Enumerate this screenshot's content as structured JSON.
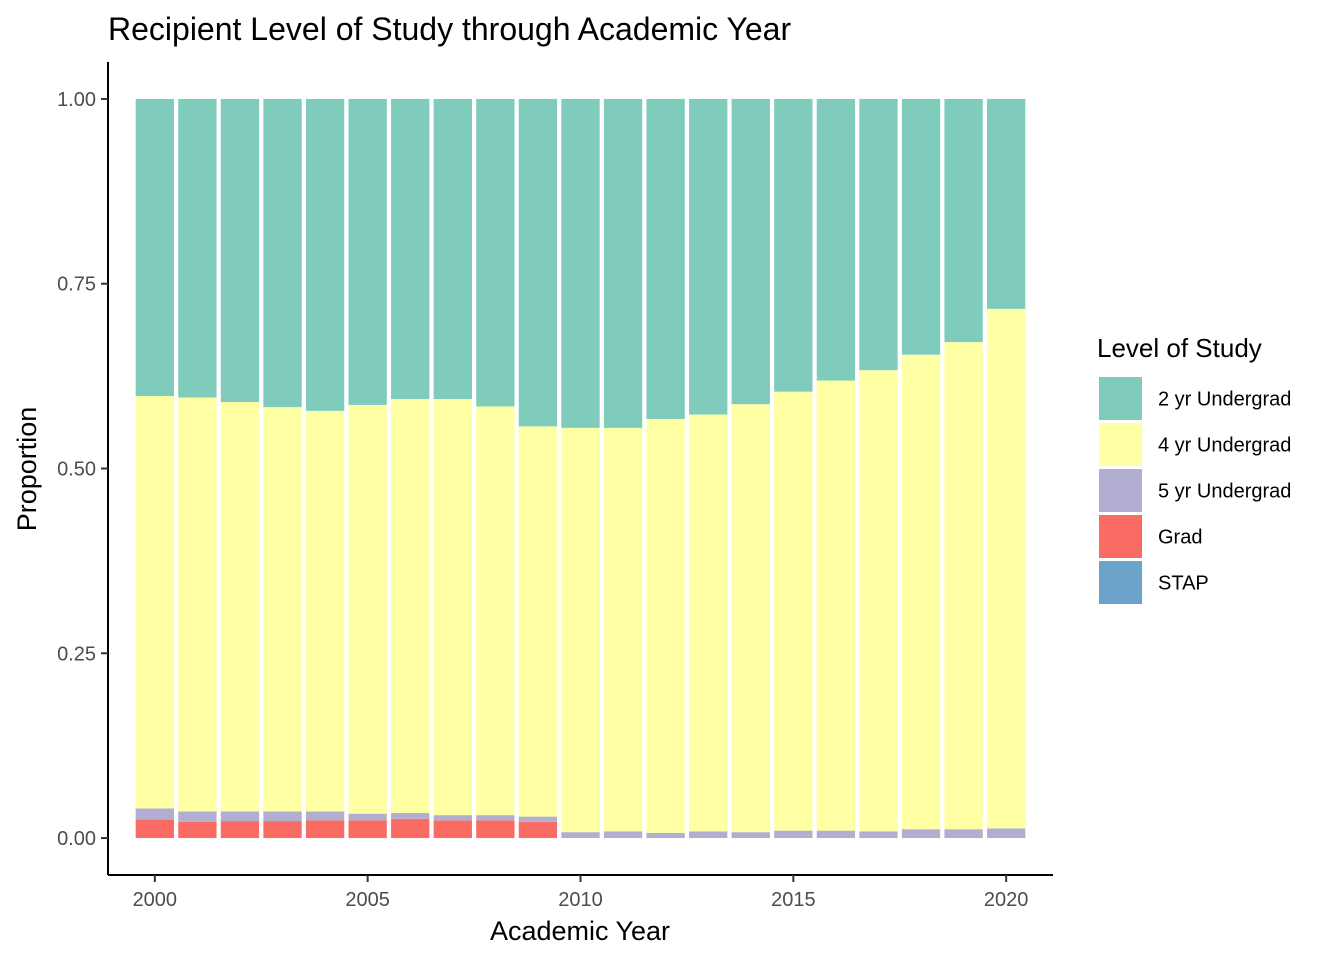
{
  "chart_data": {
    "type": "bar",
    "stacked": true,
    "title": "Recipient Level of Study through Academic Year",
    "xlabel": "Academic Year",
    "ylabel": "Proportion",
    "x": [
      2000,
      2001,
      2002,
      2003,
      2004,
      2005,
      2006,
      2007,
      2008,
      2009,
      2010,
      2011,
      2012,
      2013,
      2014,
      2015,
      2016,
      2017,
      2018,
      2019,
      2020
    ],
    "xlim": [
      1998.9,
      2021.1
    ],
    "ylim": [
      -0.05,
      1.05
    ],
    "x_ticks": [
      2000,
      2005,
      2010,
      2015,
      2020
    ],
    "y_ticks": [
      "0.00",
      "0.25",
      "0.50",
      "0.75",
      "1.00"
    ],
    "y_tick_values": [
      0,
      0.25,
      0.5,
      0.75,
      1.0
    ],
    "grid": false,
    "legend_position": "right",
    "legend_title": "Level of Study",
    "stack_order_bottom_to_top": [
      "STAP",
      "Grad",
      "5 yr Undergrad",
      "4 yr Undergrad",
      "2 yr Undergrad"
    ],
    "series": [
      {
        "name": "2 yr Undergrad",
        "color": "#7FCBBC",
        "values": [
          0.402,
          0.404,
          0.41,
          0.417,
          0.422,
          0.414,
          0.406,
          0.406,
          0.416,
          0.443,
          0.445,
          0.445,
          0.433,
          0.427,
          0.413,
          0.396,
          0.381,
          0.367,
          0.346,
          0.329,
          0.284
        ]
      },
      {
        "name": "4 yr Undergrad",
        "color": "#FFFFA3",
        "values": [
          0.558,
          0.56,
          0.554,
          0.547,
          0.542,
          0.553,
          0.56,
          0.563,
          0.553,
          0.528,
          0.547,
          0.546,
          0.56,
          0.564,
          0.579,
          0.594,
          0.609,
          0.624,
          0.642,
          0.659,
          0.703
        ]
      },
      {
        "name": "5 yr Undergrad",
        "color": "#B1AED1",
        "values": [
          0.015,
          0.014,
          0.013,
          0.013,
          0.012,
          0.009,
          0.008,
          0.007,
          0.007,
          0.007,
          0.008,
          0.009,
          0.007,
          0.009,
          0.008,
          0.01,
          0.01,
          0.009,
          0.012,
          0.012,
          0.013
        ]
      },
      {
        "name": "Grad",
        "color": "#F96C63",
        "values": [
          0.025,
          0.022,
          0.023,
          0.023,
          0.024,
          0.024,
          0.026,
          0.024,
          0.024,
          0.022,
          0.0,
          0.0,
          0.0,
          0.0,
          0.0,
          0.0,
          0.0,
          0.0,
          0.0,
          0.0,
          0.0
        ]
      },
      {
        "name": "STAP",
        "color": "#6BA3CB",
        "values": [
          0,
          0,
          0,
          0,
          0,
          0,
          0,
          0,
          0,
          0,
          0,
          0,
          0,
          0,
          0,
          0,
          0,
          0,
          0,
          0,
          0
        ]
      }
    ]
  }
}
